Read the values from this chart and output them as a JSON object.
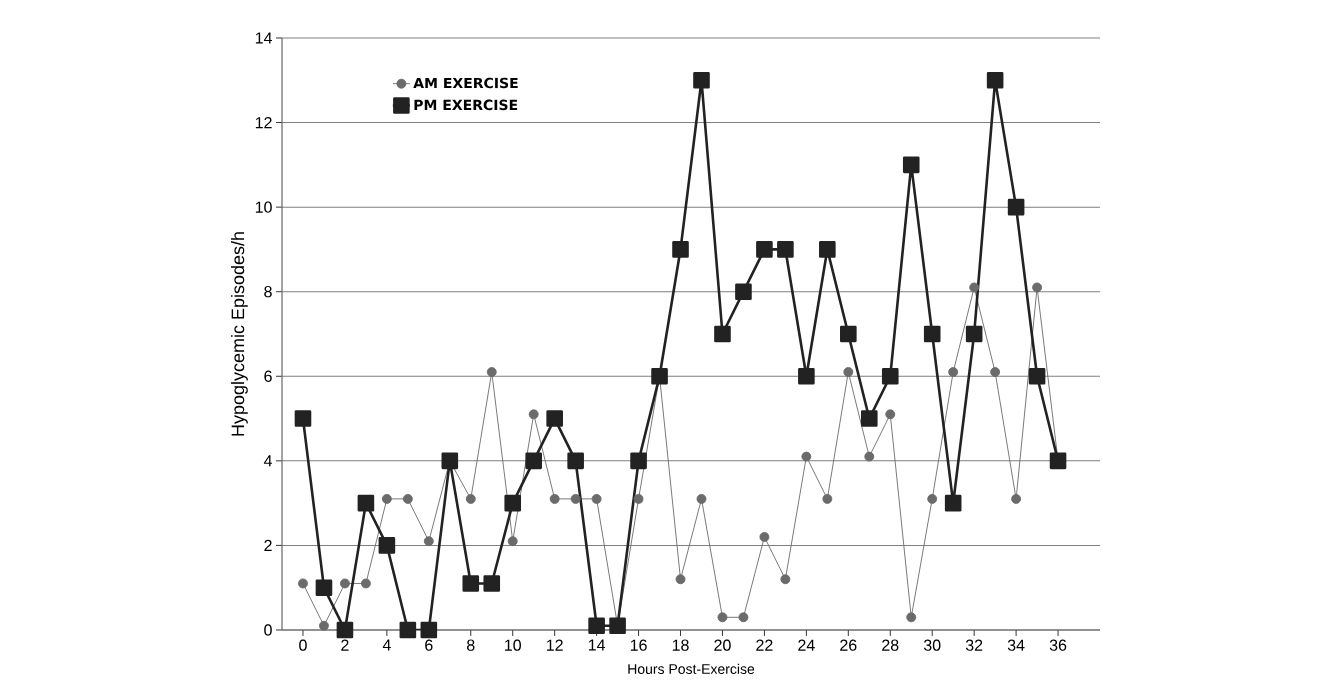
{
  "chart_data": {
    "type": "line",
    "xlabel": "Hours Post-Exercise",
    "ylabel": "Hypoglycemic Episodes/h",
    "x": [
      0,
      1,
      2,
      3,
      4,
      5,
      6,
      7,
      8,
      9,
      10,
      11,
      12,
      13,
      14,
      15,
      16,
      17,
      18,
      19,
      20,
      21,
      22,
      23,
      24,
      25,
      26,
      27,
      28,
      29,
      30,
      31,
      32,
      33,
      34,
      35,
      36
    ],
    "series": [
      {
        "name": "AM EXERCISE",
        "color": "#6b6b6b",
        "marker": "circle",
        "values": [
          1.1,
          0.1,
          1.1,
          1.1,
          3.1,
          3.1,
          2.1,
          4,
          3.1,
          6.1,
          2.1,
          5.1,
          3.1,
          3.1,
          3.1,
          0.1,
          3.1,
          6,
          1.2,
          3.1,
          0.3,
          0.3,
          2.2,
          1.2,
          4.1,
          3.1,
          6.1,
          4.1,
          5.1,
          0.3,
          3.1,
          6.1,
          8.1,
          6.1,
          3.1,
          8.1,
          4
        ]
      },
      {
        "name": "PM EXERCISE",
        "color": "#222222",
        "marker": "square",
        "values": [
          5,
          1,
          0,
          3,
          2,
          0,
          0,
          4,
          1.1,
          1.1,
          3,
          4,
          5,
          4,
          0.1,
          0.1,
          4,
          6,
          9,
          13,
          7,
          8,
          9,
          9,
          6,
          9,
          7,
          5,
          6,
          11,
          7,
          3,
          7,
          13,
          10,
          6,
          4
        ]
      }
    ],
    "xlim": [
      -1,
      38
    ],
    "ylim": [
      0,
      14
    ],
    "xticks": [
      0,
      2,
      4,
      6,
      8,
      10,
      12,
      14,
      16,
      18,
      20,
      22,
      24,
      26,
      28,
      30,
      32,
      34,
      36
    ],
    "yticks": [
      0,
      2,
      4,
      6,
      8,
      10,
      12,
      14
    ],
    "grid": "y",
    "legend": "top left",
    "line_style": "solid"
  }
}
